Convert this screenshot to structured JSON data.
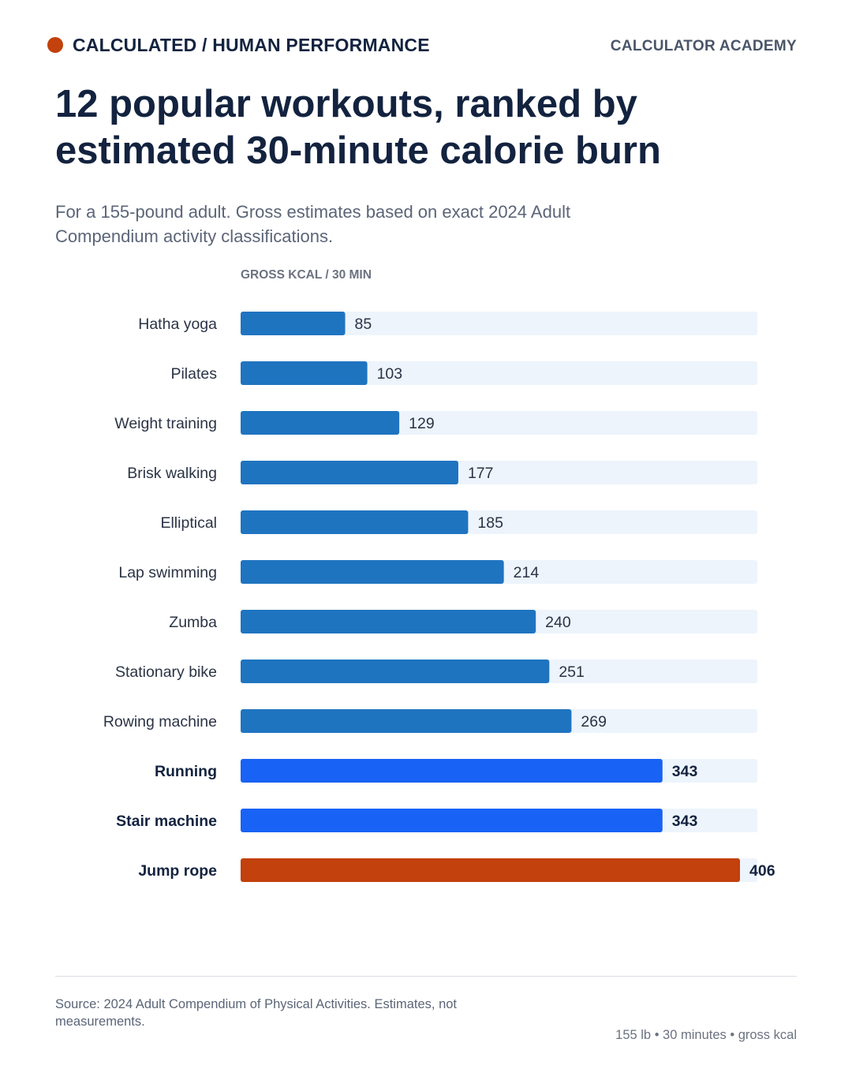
{
  "header": {
    "kicker": "CALCULATED / HUMAN PERFORMANCE",
    "brand": "CALCULATOR ACADEMY",
    "accent_color": "#c2410c"
  },
  "title": "12 popular workouts, ranked by estimated 30-minute calorie burn",
  "subtitle": "For a 155-pound adult. Gross estimates based on exact 2024 Adult Compendium activity classifications.",
  "chart_data": {
    "type": "bar",
    "orientation": "horizontal",
    "axis_label": "GROSS KCAL / 30 MIN",
    "categories": [
      "Hatha yoga",
      "Pilates",
      "Weight training",
      "Brisk walking",
      "Elliptical",
      "Lap swimming",
      "Zumba",
      "Stationary bike",
      "Rowing machine",
      "Running",
      "Stair machine",
      "Jump rope"
    ],
    "values": [
      85,
      103,
      129,
      177,
      185,
      214,
      240,
      251,
      269,
      343,
      343,
      406
    ],
    "highlight": [
      "normal",
      "normal",
      "normal",
      "normal",
      "normal",
      "normal",
      "normal",
      "normal",
      "normal",
      "strong",
      "strong",
      "top"
    ],
    "xlim": [
      0,
      420
    ],
    "colors": {
      "normal": "#1f74c0",
      "strong": "#1862f5",
      "top": "#c2410c",
      "track": "#edf4fc"
    },
    "grid": false,
    "legend": "none"
  },
  "footer": {
    "source": "Source: 2024 Adult Compendium of Physical Activities. Estimates, not measurements.",
    "note": "155 lb • 30 minutes • gross kcal"
  }
}
